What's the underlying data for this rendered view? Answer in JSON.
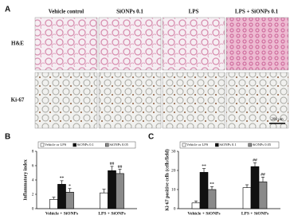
{
  "panels": {
    "a": "A",
    "b": "B",
    "c": "C"
  },
  "panel_a": {
    "columns": [
      "Vehicle control",
      "SiONPs 0.1",
      "LPS",
      "LPS + SiONPs 0.1"
    ],
    "rows": [
      "H&E",
      "Ki-67"
    ],
    "scale_bar": "200 μm"
  },
  "chart_data": [
    {
      "type": "bar",
      "y_label": "Inflammatory index",
      "categories": [
        "Vehicle + SiONPs",
        "LPS + SiONPs"
      ],
      "series": [
        {
          "name": "Vehicle or LPS",
          "color": "#ffffff",
          "values": [
            1.3,
            2.2
          ],
          "errors": [
            0.3,
            0.5
          ],
          "significance": [
            null,
            null
          ]
        },
        {
          "name": "SiONPs 0.1",
          "color": "#111111",
          "values": [
            3.4,
            5.3
          ],
          "errors": [
            0.5,
            0.6
          ],
          "significance": [
            "**",
            "##"
          ]
        },
        {
          "name": "SiONPs 0.05",
          "color": "#8a8a8a",
          "values": [
            2.3,
            4.9
          ],
          "errors": [
            0.5,
            0.6
          ],
          "significance": [
            "*",
            "##"
          ]
        }
      ],
      "ylim": [
        0,
        8
      ],
      "yticks": [
        0,
        2,
        4,
        6,
        8
      ]
    },
    {
      "type": "bar",
      "y_label": "Ki-67 positive cells (cells/field)",
      "categories": [
        "Vehicle + SiONPs",
        "LPS + SiONPs"
      ],
      "series": [
        {
          "name": "Vehicle or LPS",
          "color": "#ffffff",
          "values": [
            3,
            11
          ],
          "errors": [
            1,
            1.5
          ],
          "significance": [
            null,
            null
          ]
        },
        {
          "name": "SiONPs 0.1",
          "color": "#111111",
          "values": [
            19,
            22
          ],
          "errors": [
            2,
            2
          ],
          "significance": [
            "**",
            "##"
          ]
        },
        {
          "name": "SiONPs 0.05",
          "color": "#8a8a8a",
          "values": [
            10,
            14
          ],
          "errors": [
            1.5,
            2.5
          ],
          "significance": [
            "**",
            "##"
          ]
        }
      ],
      "ylim": [
        0,
        30
      ],
      "yticks": [
        0,
        10,
        20,
        30
      ]
    }
  ]
}
